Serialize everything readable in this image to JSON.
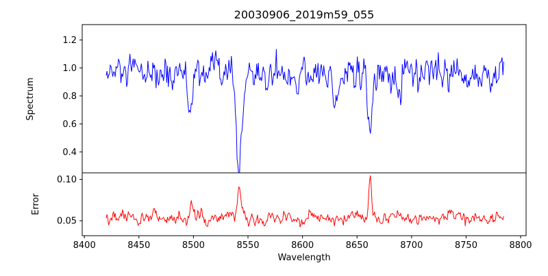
{
  "figure": {
    "title": "20030906_2019m59_055",
    "xlabel": "Wavelength",
    "background_color": "#ffffff",
    "seed": 12345
  },
  "axes": {
    "xlim": [
      8398,
      8805
    ],
    "xticks": [
      {
        "value": 8400,
        "label": "8400"
      },
      {
        "value": 8450,
        "label": "8450"
      },
      {
        "value": 8500,
        "label": "8500"
      },
      {
        "value": 8550,
        "label": "8550"
      },
      {
        "value": 8600,
        "label": "8600"
      },
      {
        "value": 8650,
        "label": "8650"
      },
      {
        "value": 8700,
        "label": "8700"
      },
      {
        "value": 8750,
        "label": "8750"
      },
      {
        "value": 8800,
        "label": "8800"
      }
    ]
  },
  "chart_data": [
    {
      "type": "line",
      "name": "spectrum",
      "ylabel": "Spectrum",
      "color": "#0000ff",
      "x_range": [
        8420,
        8785
      ],
      "x_step": 0.75,
      "ylim": [
        0.25,
        1.31
      ],
      "yticks": [
        {
          "value": 0.4,
          "label": "0.4"
        },
        {
          "value": 0.6,
          "label": "0.6"
        },
        {
          "value": 0.8,
          "label": "0.8"
        },
        {
          "value": 1.0,
          "label": "1.0"
        },
        {
          "value": 1.2,
          "label": "1.2"
        }
      ],
      "continuum_level": 0.95,
      "noise_sigma": 0.065,
      "noise_correlation": 0.45,
      "absorption_lines": [
        {
          "wavelength": 8498,
          "depth": 0.36,
          "width_sigma": 1.8
        },
        {
          "wavelength": 8542,
          "depth": 0.63,
          "width_sigma": 2.6
        },
        {
          "wavelength": 8630,
          "depth": 0.17,
          "width_sigma": 1.8
        },
        {
          "wavelength": 8662,
          "depth": 0.49,
          "width_sigma": 2.0
        },
        {
          "wavelength": 8688,
          "depth": 0.1,
          "width_sigma": 1.6
        }
      ]
    },
    {
      "type": "line",
      "name": "error",
      "ylabel": "Error",
      "color": "#ff0000",
      "x_range": [
        8420,
        8785
      ],
      "x_step": 0.75,
      "ylim": [
        0.032,
        0.108
      ],
      "yticks": [
        {
          "value": 0.05,
          "label": "0.05"
        },
        {
          "value": 0.1,
          "label": "0.10"
        }
      ],
      "baseline_level": 0.053,
      "noise_sigma": 0.004,
      "noise_correlation": 0.5,
      "error_spikes": [
        {
          "wavelength": 8464,
          "height": 0.014,
          "width_sigma": 1.4
        },
        {
          "wavelength": 8498,
          "height": 0.02,
          "width_sigma": 1.4
        },
        {
          "wavelength": 8542,
          "height": 0.036,
          "width_sigma": 1.6
        },
        {
          "wavelength": 8583,
          "height": 0.012,
          "width_sigma": 1.4
        },
        {
          "wavelength": 8662,
          "height": 0.05,
          "width_sigma": 1.2
        },
        {
          "wavelength": 8736,
          "height": 0.013,
          "width_sigma": 1.4
        }
      ]
    }
  ]
}
